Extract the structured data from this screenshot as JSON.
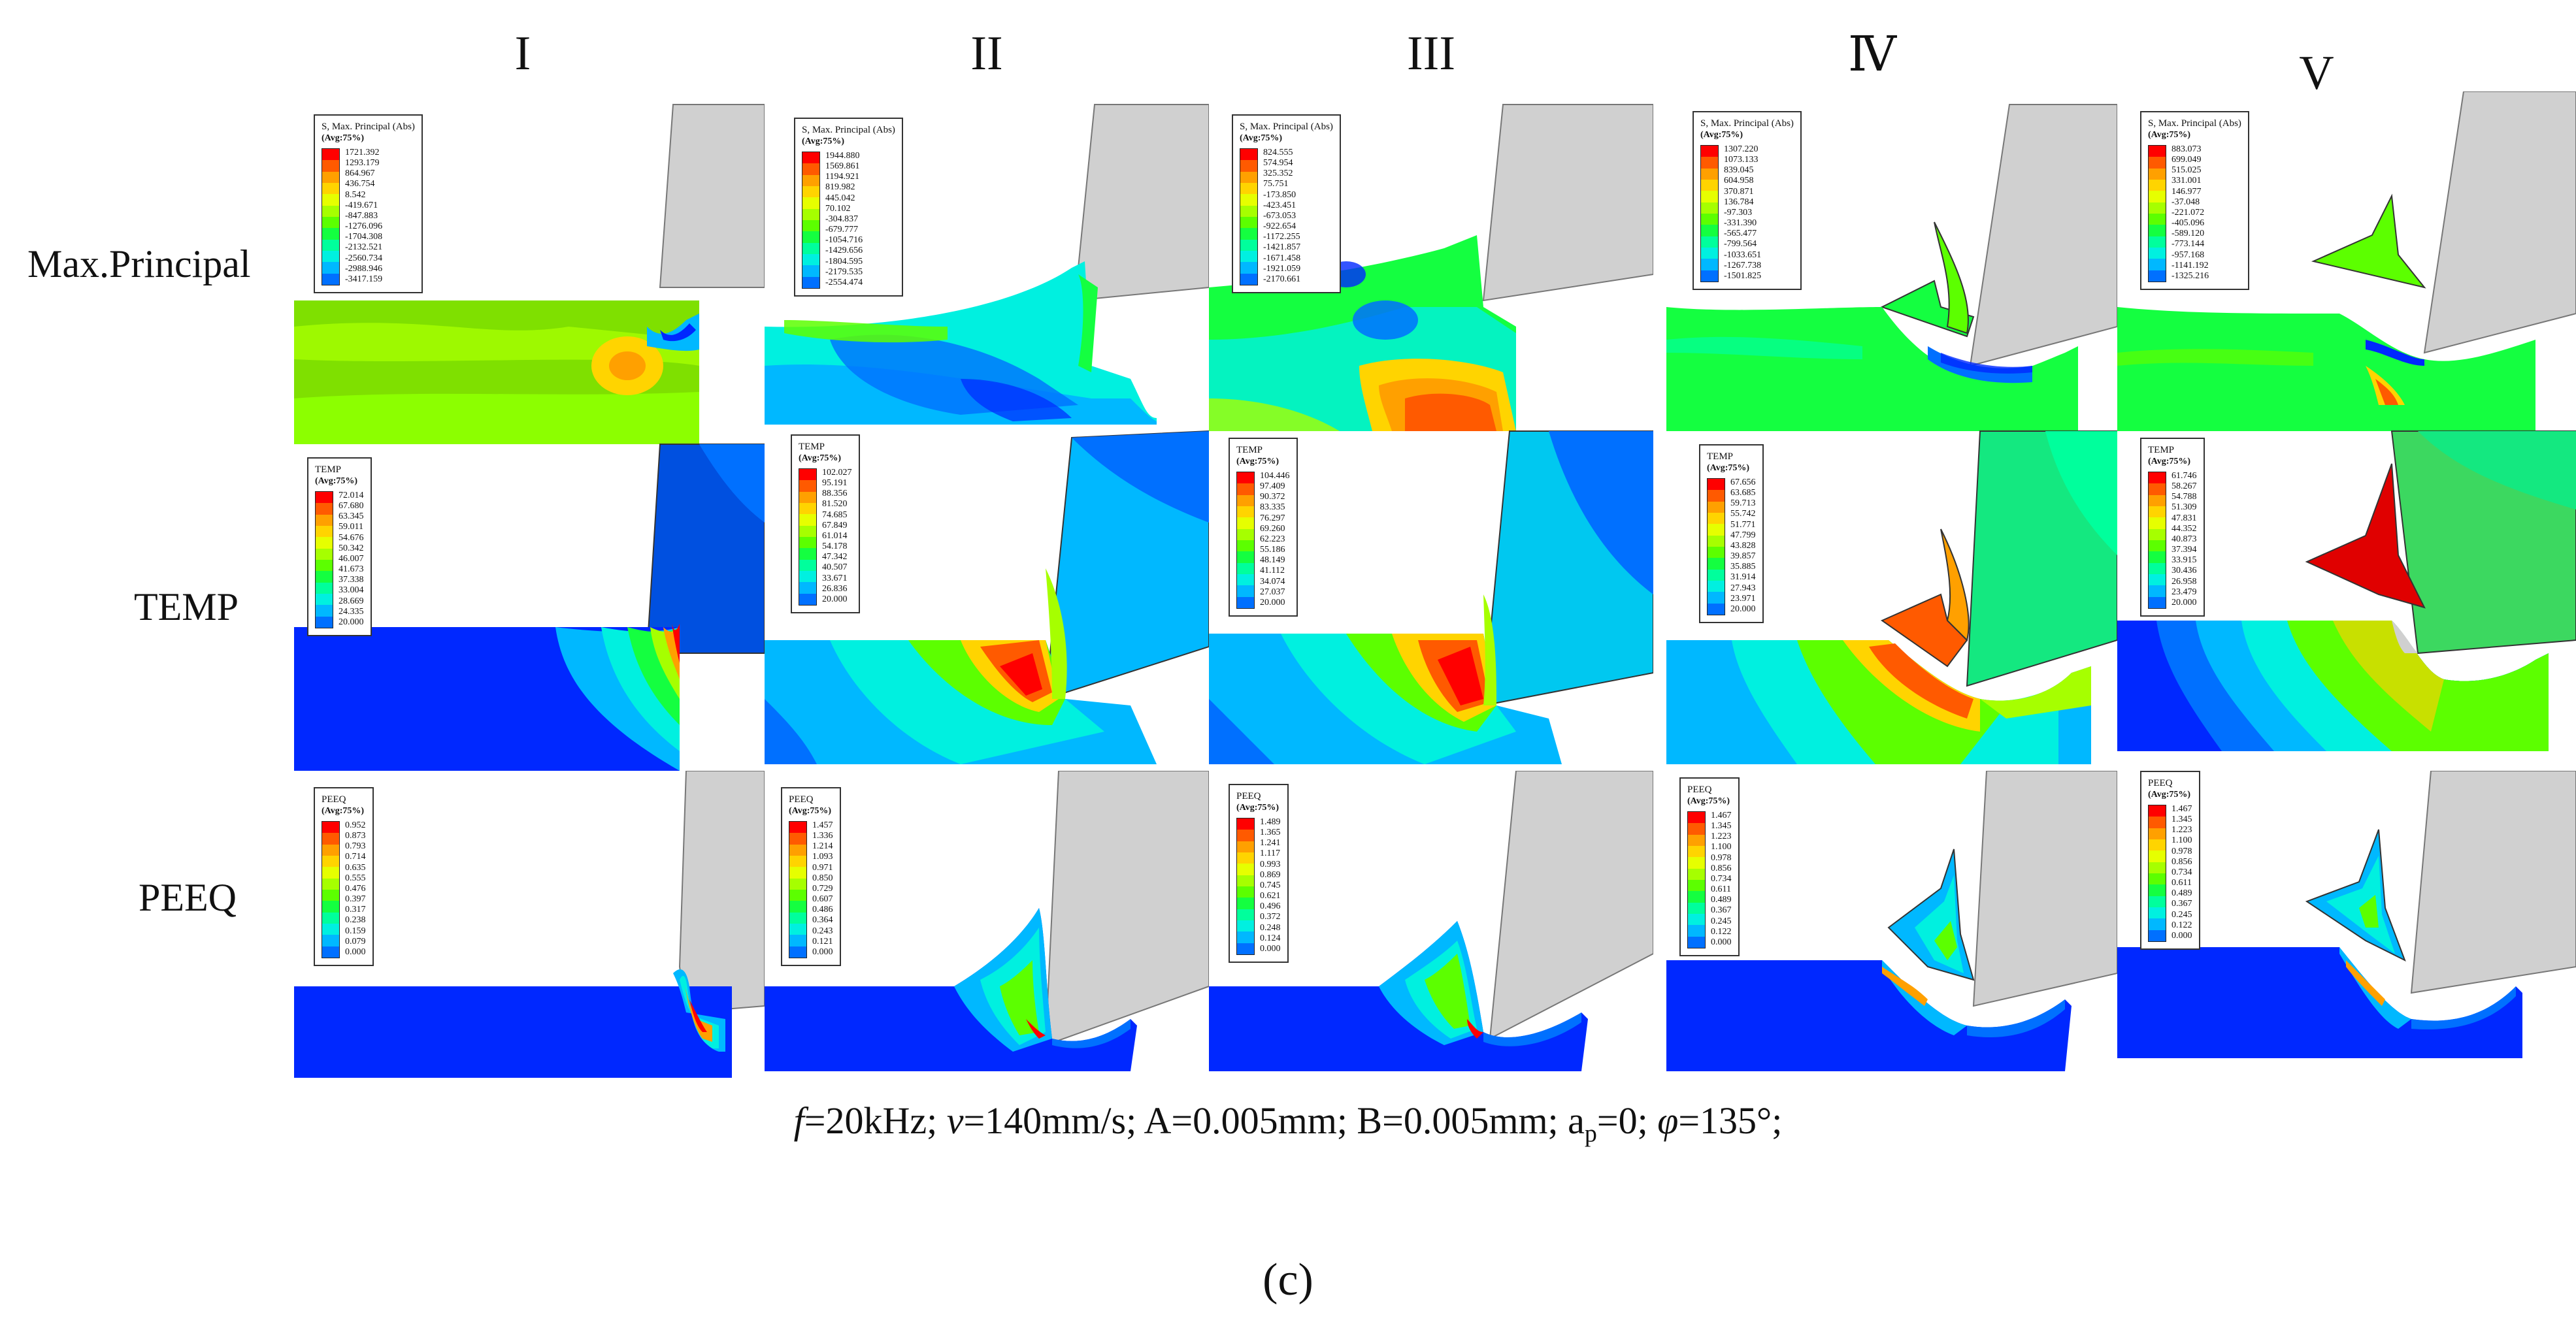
{
  "columns": [
    "I",
    "II",
    "III",
    "Ⅳ",
    "V"
  ],
  "rows": [
    "Max.Principal",
    "TEMP",
    "PEEQ"
  ],
  "caption": "f=20kHz; v=140mm/s; A=0.005mm; B=0.005mm; a_p=0;  φ=135°;",
  "caption_parts": {
    "f": "f",
    "f_rest": "=20kHz; ",
    "v": "v",
    "v_rest": "=140mm/s; A=0.005mm; B=0.005mm; a",
    "p": "p",
    "p_rest": "=0;  ",
    "phi": "φ",
    "phi_rest": "=135°;"
  },
  "sublabel": "(c)",
  "colors": [
    "#ff0000",
    "#ff5a00",
    "#ffa000",
    "#ffd400",
    "#e6ff00",
    "#a6ff00",
    "#5cff00",
    "#14ff40",
    "#00ff9c",
    "#00f0e0",
    "#00b8ff",
    "#0070ff",
    "#0028ff"
  ],
  "legends": {
    "maxp": [
      {
        "title": "S, Max. Principal (Abs)",
        "sub": "(Avg:75%)",
        "values": [
          "1721.392",
          "1293.179",
          "864.967",
          "436.754",
          "8.542",
          "-419.671",
          "-847.883",
          "-1276.096",
          "-1704.308",
          "-2132.521",
          "-2560.734",
          "-2988.946",
          "-3417.159"
        ]
      },
      {
        "title": "S, Max. Principal (Abs)",
        "sub": "(Avg:75%)",
        "values": [
          "1944.880",
          "1569.861",
          "1194.921",
          "819.982",
          "445.042",
          "70.102",
          "-304.837",
          "-679.777",
          "-1054.716",
          "-1429.656",
          "-1804.595",
          "-2179.535",
          "-2554.474"
        ]
      },
      {
        "title": "S, Max. Principal (Abs)",
        "sub": "(Avg:75%)",
        "values": [
          "824.555",
          "574.954",
          "325.352",
          "75.751",
          "-173.850",
          "-423.451",
          "-673.053",
          "-922.654",
          "-1172.255",
          "-1421.857",
          "-1671.458",
          "-1921.059",
          "-2170.661"
        ]
      },
      {
        "title": "S, Max. Principal (Abs)",
        "sub": "(Avg:75%)",
        "values": [
          "1307.220",
          "1073.133",
          "839.045",
          "604.958",
          "370.871",
          "136.784",
          "-97.303",
          "-331.390",
          "-565.477",
          "-799.564",
          "-1033.651",
          "-1267.738",
          "-1501.825"
        ]
      },
      {
        "title": "S, Max. Principal (Abs)",
        "sub": "(Avg:75%)",
        "values": [
          "883.073",
          "699.049",
          "515.025",
          "331.001",
          "146.977",
          "-37.048",
          "-221.072",
          "-405.096",
          "-589.120",
          "-773.144",
          "-957.168",
          "-1141.192",
          "-1325.216"
        ]
      }
    ],
    "temp": [
      {
        "title": "TEMP",
        "sub": "(Avg:75%)",
        "values": [
          "72.014",
          "67.680",
          "63.345",
          "59.011",
          "54.676",
          "50.342",
          "46.007",
          "41.673",
          "37.338",
          "33.004",
          "28.669",
          "24.335",
          "20.000"
        ]
      },
      {
        "title": "TEMP",
        "sub": "(Avg:75%)",
        "values": [
          "102.027",
          "95.191",
          "88.356",
          "81.520",
          "74.685",
          "67.849",
          "61.014",
          "54.178",
          "47.342",
          "40.507",
          "33.671",
          "26.836",
          "20.000"
        ]
      },
      {
        "title": "TEMP",
        "sub": "(Avg:75%)",
        "values": [
          "104.446",
          "97.409",
          "90.372",
          "83.335",
          "76.297",
          "69.260",
          "62.223",
          "55.186",
          "48.149",
          "41.112",
          "34.074",
          "27.037",
          "20.000"
        ]
      },
      {
        "title": "TEMP",
        "sub": "(Avg:75%)",
        "values": [
          "67.656",
          "63.685",
          "59.713",
          "55.742",
          "51.771",
          "47.799",
          "43.828",
          "39.857",
          "35.885",
          "31.914",
          "27.943",
          "23.971",
          "20.000"
        ]
      },
      {
        "title": "TEMP",
        "sub": "(Avg:75%)",
        "values": [
          "61.746",
          "58.267",
          "54.788",
          "51.309",
          "47.831",
          "44.352",
          "40.873",
          "37.394",
          "33.915",
          "30.436",
          "26.958",
          "23.479",
          "20.000"
        ]
      }
    ],
    "peeq": [
      {
        "title": "PEEQ",
        "sub": "(Avg:75%)",
        "values": [
          "0.952",
          "0.873",
          "0.793",
          "0.714",
          "0.635",
          "0.555",
          "0.476",
          "0.397",
          "0.317",
          "0.238",
          "0.159",
          "0.079",
          "0.000"
        ]
      },
      {
        "title": "PEEQ",
        "sub": "(Avg:75%)",
        "values": [
          "1.457",
          "1.336",
          "1.214",
          "1.093",
          "0.971",
          "0.850",
          "0.729",
          "0.607",
          "0.486",
          "0.364",
          "0.243",
          "0.121",
          "0.000"
        ]
      },
      {
        "title": "PEEQ",
        "sub": "(Avg:75%)",
        "values": [
          "1.489",
          "1.365",
          "1.241",
          "1.117",
          "0.993",
          "0.869",
          "0.745",
          "0.621",
          "0.496",
          "0.372",
          "0.248",
          "0.124",
          "0.000"
        ]
      },
      {
        "title": "PEEQ",
        "sub": "(Avg:75%)",
        "values": [
          "1.467",
          "1.345",
          "1.223",
          "1.100",
          "0.978",
          "0.856",
          "0.734",
          "0.611",
          "0.489",
          "0.367",
          "0.245",
          "0.122",
          "0.000"
        ]
      },
      {
        "title": "PEEQ",
        "sub": "(Avg:75%)",
        "values": [
          "1.467",
          "1.345",
          "1.223",
          "1.100",
          "0.978",
          "0.856",
          "0.734",
          "0.611",
          "0.489",
          "0.367",
          "0.245",
          "0.122",
          "0.000"
        ]
      }
    ]
  }
}
